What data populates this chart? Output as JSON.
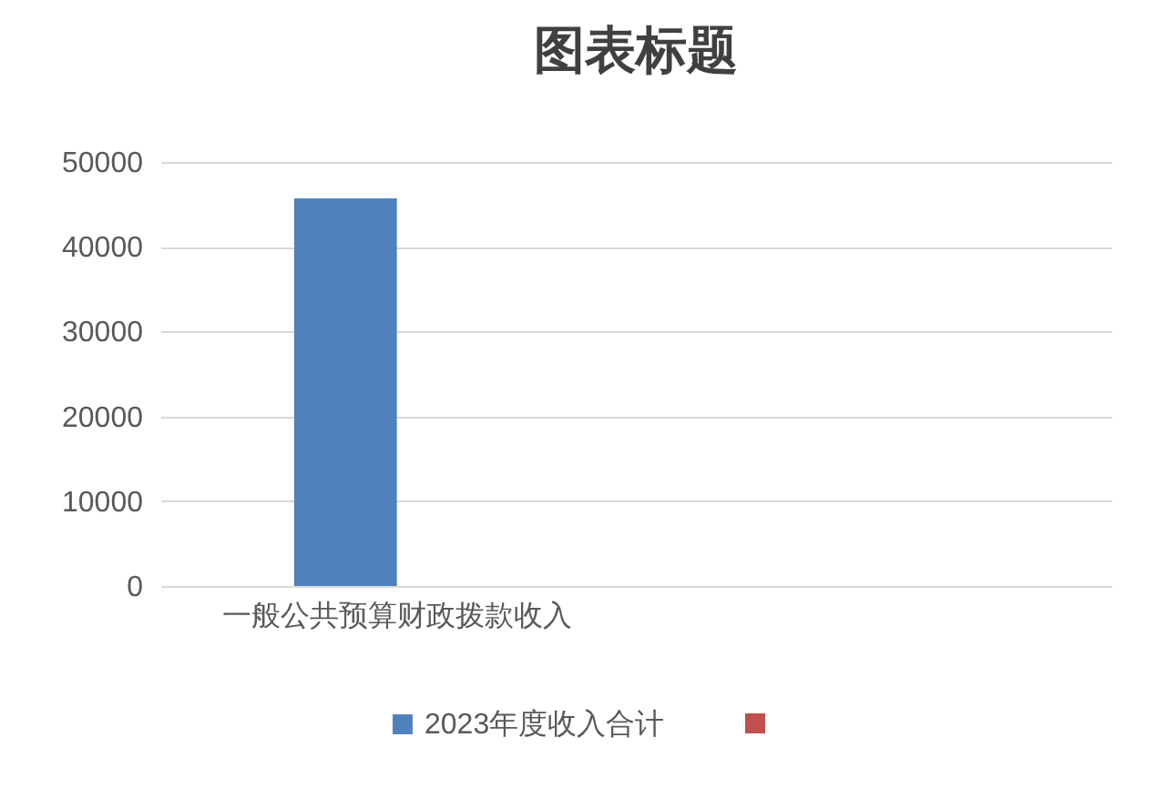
{
  "chart_data": {
    "type": "bar",
    "title": "图表标题",
    "categories": [
      "一般公共预算财政拨款收入",
      null
    ],
    "series": [
      {
        "name": "2023年度收入合计",
        "color": "#4f81bd",
        "values": [
          45700,
          null
        ]
      },
      {
        "color": "#c0504d",
        "values": [
          null,
          null
        ]
      }
    ],
    "ylim": [
      0,
      50000
    ],
    "yticks": [
      0,
      10000,
      20000,
      30000,
      40000,
      50000
    ],
    "grid": "y",
    "legend": "bottom"
  }
}
